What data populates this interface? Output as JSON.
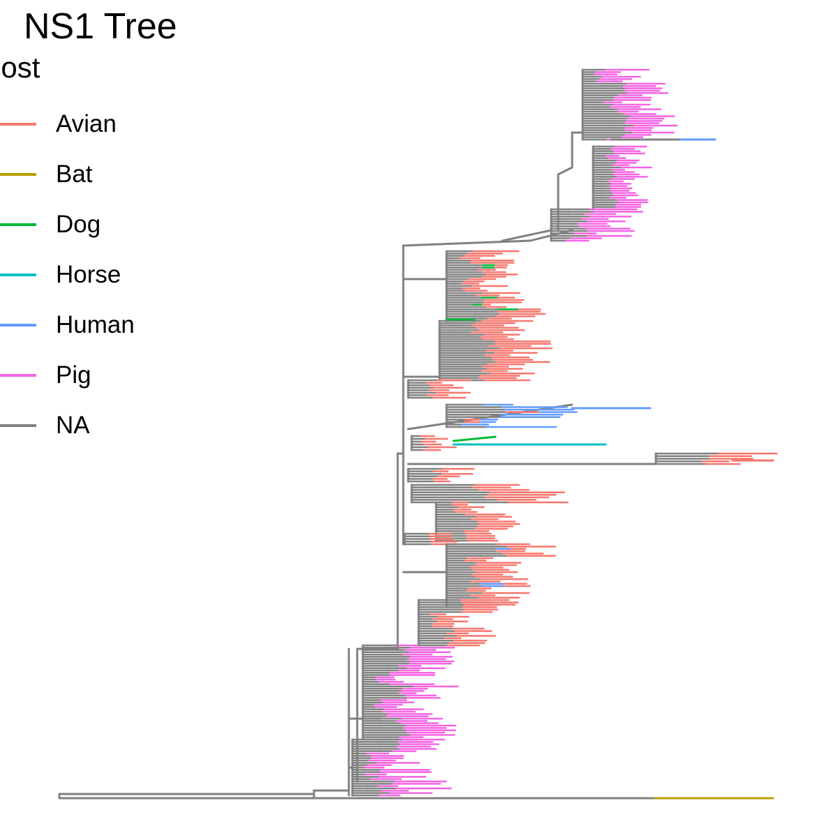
{
  "title": "NS1 Tree",
  "legend": {
    "title": "host",
    "items": [
      {
        "label": "Avian",
        "color": "#F8766D"
      },
      {
        "label": "Bat",
        "color": "#B79F00"
      },
      {
        "label": "Dog",
        "color": "#00BA38"
      },
      {
        "label": "Horse",
        "color": "#00BFC4"
      },
      {
        "label": "Human",
        "color": "#619CFF"
      },
      {
        "label": "Pig",
        "color": "#F564E3"
      },
      {
        "label": "NA",
        "color": "#808080"
      }
    ]
  }
}
